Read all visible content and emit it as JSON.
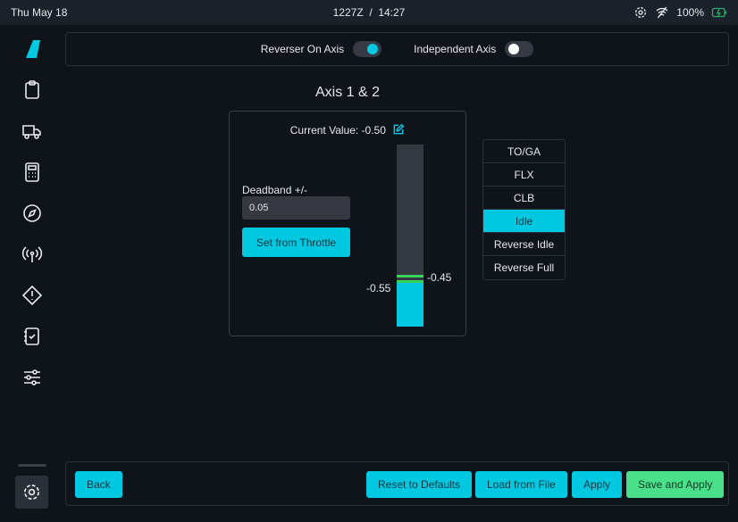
{
  "status": {
    "date": "Thu May 18",
    "time": "1227Z  /  14:27",
    "battery": "100%",
    "icons": [
      "gear-icon",
      "wifi-off-icon",
      "battery-charging-icon"
    ]
  },
  "sidebar": {
    "items": [
      "logo",
      "clipboard-icon",
      "truck-icon",
      "calculator-icon",
      "compass-icon",
      "antenna-icon",
      "warning-icon",
      "checklist-icon",
      "sliders-icon",
      "gear-icon"
    ]
  },
  "toggles": [
    {
      "label": "Reverser On Axis",
      "on": true
    },
    {
      "label": "Independent Axis",
      "on": false
    }
  ],
  "title": "Axis 1 & 2",
  "current_value_label": "Current Value: -0.50",
  "deadband": {
    "label": "Deadband +/-",
    "value": "0.05"
  },
  "set_from_throttle": "Set from Throttle",
  "axis": {
    "value": -0.5,
    "min": -1,
    "max": 1,
    "lower_label": "-0.55",
    "upper_label": "-0.45",
    "lower": -0.55,
    "upper": -0.45
  },
  "detents": [
    {
      "label": "TO/GA"
    },
    {
      "label": "FLX"
    },
    {
      "label": "CLB"
    },
    {
      "label": "Idle",
      "active": true
    },
    {
      "label": "Reverse Idle"
    },
    {
      "label": "Reverse Full"
    }
  ],
  "footer": {
    "back": "Back",
    "reset": "Reset to Defaults",
    "load": "Load from File",
    "apply": "Apply",
    "save_apply": "Save and Apply"
  },
  "colors": {
    "accent": "#00c8e0",
    "success": "#4ae08a",
    "deadband": "#3ad35a"
  }
}
